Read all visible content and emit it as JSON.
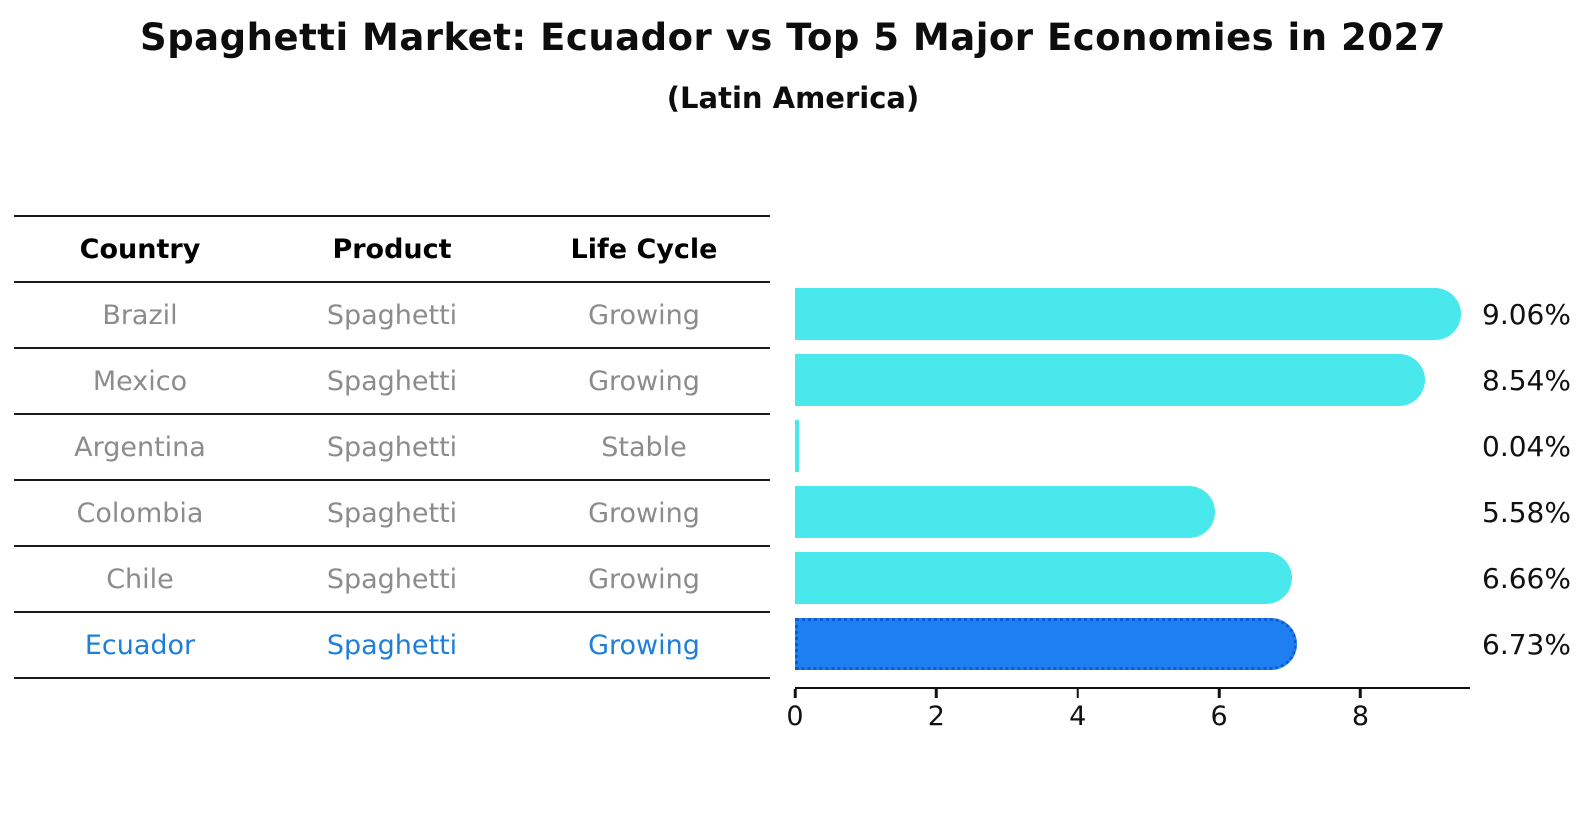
{
  "table": {
    "headers": [
      "Country",
      "Product",
      "Life Cycle"
    ],
    "rows": [
      {
        "country": "Brazil",
        "product": "Spaghetti",
        "life_cycle": "Growing"
      },
      {
        "country": "Mexico",
        "product": "Spaghetti",
        "life_cycle": "Growing"
      },
      {
        "country": "Argentina",
        "product": "Spaghetti",
        "life_cycle": "Stable"
      },
      {
        "country": "Colombia",
        "product": "Spaghetti",
        "life_cycle": "Growing"
      },
      {
        "country": "Chile",
        "product": "Spaghetti",
        "life_cycle": "Growing"
      },
      {
        "country": "Ecuador",
        "product": "Spaghetti",
        "life_cycle": "Growing"
      }
    ]
  },
  "chart_data": {
    "type": "bar",
    "orientation": "horizontal",
    "title": "Spaghetti Market: Ecuador vs Top 5 Major Economies in 2027",
    "subtitle": "(Latin America)",
    "categories": [
      "Brazil",
      "Mexico",
      "Argentina",
      "Colombia",
      "Chile",
      "Ecuador"
    ],
    "values": [
      9.06,
      8.54,
      0.04,
      5.58,
      6.66,
      6.73
    ],
    "value_labels": [
      "9.06%",
      "8.54%",
      "0.04%",
      "5.58%",
      "6.66%",
      "6.73%"
    ],
    "unit": "%",
    "xlabel": "",
    "ylabel": "",
    "xlim": [
      0,
      9.55
    ],
    "x_ticks": [
      0,
      2,
      4,
      6,
      8
    ],
    "grid": false,
    "legend": false,
    "bar_color": "#48E8EC",
    "highlight_index": 5,
    "highlight_category": "Ecuador",
    "highlight_color": "#1E80F0",
    "highlight_border_color": "#0D5BD6"
  },
  "colors": {
    "background": "#FFFFFF",
    "table_line": "#1A1A1A",
    "table_header_text": "#000000",
    "table_cell_text": "#8C8C8C",
    "highlight_row_text": "#1E7FDB",
    "axis": "#111111",
    "value_label_text": "#111111"
  }
}
